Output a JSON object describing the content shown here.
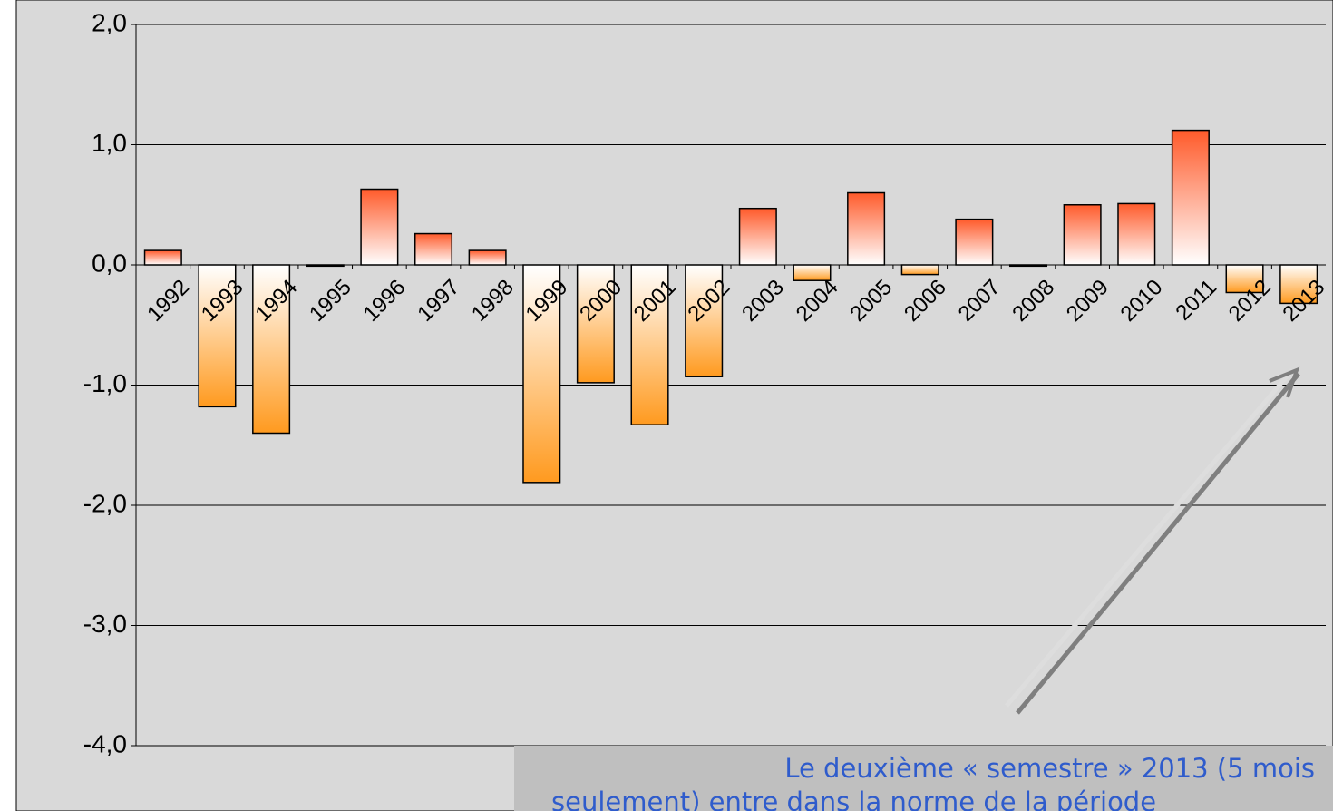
{
  "chart_data": {
    "type": "bar",
    "categories": [
      "1992",
      "1993",
      "1994",
      "1995",
      "1996",
      "1997",
      "1998",
      "1999",
      "2000",
      "2001",
      "2002",
      "2003",
      "2004",
      "2005",
      "2006",
      "2007",
      "2008",
      "2009",
      "2010",
      "2011",
      "2012",
      "2013"
    ],
    "values": [
      0.12,
      -1.18,
      -1.4,
      -0.01,
      0.63,
      0.26,
      0.12,
      -1.81,
      -0.98,
      -1.33,
      -0.93,
      0.47,
      -0.13,
      0.6,
      -0.08,
      0.38,
      -0.01,
      0.5,
      0.51,
      1.12,
      -0.23,
      -0.32
    ],
    "color_positive": "#ff5a2a",
    "color_negative": "#ff9a1f",
    "ylim": [
      -4,
      2
    ],
    "yticks": [
      {
        "value": -4,
        "label": "-4,0"
      },
      {
        "value": -3,
        "label": "-3,0"
      },
      {
        "value": -2,
        "label": "-2,0"
      },
      {
        "value": -1,
        "label": "-1,0"
      },
      {
        "value": 0,
        "label": "0,0"
      },
      {
        "value": 1,
        "label": "1,0"
      },
      {
        "value": 2,
        "label": "2,0"
      }
    ],
    "grid": true,
    "annotation": [
      "Le deuxième « semestre » 2013 (5 mois",
      "seulement) entre dans la norme de la période"
    ]
  }
}
